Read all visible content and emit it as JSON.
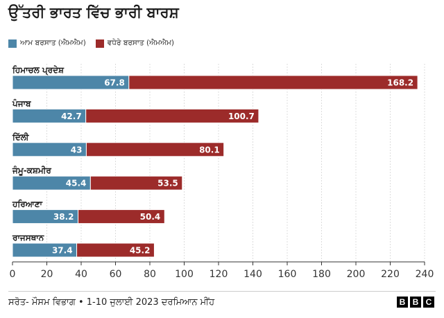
{
  "chart_data": {
    "type": "bar",
    "orientation": "horizontal",
    "stacked": true,
    "title": "ਉੱਤਰੀ ਭਾਰਤ ਵਿੱਚ ਭਾਰੀ ਬਾਰਸ਼",
    "xlim": [
      0,
      240
    ],
    "x_ticks": [
      0,
      20,
      40,
      60,
      80,
      100,
      120,
      140,
      160,
      180,
      200,
      220,
      240
    ],
    "grid": true,
    "legend_position": "top-left",
    "categories": [
      "ਹਿਮਾਚਲ ਪ੍ਰਦੇਸ਼",
      "ਪੰਜਾਬ",
      "ਦਿੱਲੀ",
      "ਜੰਮੂ-ਕਸ਼ਮੀਰ",
      "ਹਰਿਆਣਾ",
      "ਰਾਜਸਥਾਨ"
    ],
    "series": [
      {
        "name": "ਆਮ ਬਰਸਾਤ (ਐਮਐਮ)",
        "color": "#4d86a8",
        "values": [
          67.8,
          42.7,
          43,
          45.4,
          38.2,
          37.4
        ],
        "labels": [
          "67.8",
          "42.7",
          "43",
          "45.4",
          "38.2",
          "37.4"
        ]
      },
      {
        "name": "ਵਧੇਰੇ ਬਰਸਾਤ (ਐਮਐਮ)",
        "color": "#9c2b2a",
        "values": [
          168.2,
          100.7,
          80.1,
          53.5,
          50.4,
          45.2
        ],
        "labels": [
          "168.2",
          "100.7",
          "80.1",
          "53.5",
          "50.4",
          "45.2"
        ]
      }
    ]
  },
  "footer": {
    "source": "ਸਰੋਤ- ਮੌਸਮ ਵਿਭਾਗ • 1-10 ਜੁਲਾਈ 2023 ਦਰਮਿਆਨ ਮੀਂਹ",
    "logo_letters": [
      "B",
      "B",
      "C"
    ]
  }
}
